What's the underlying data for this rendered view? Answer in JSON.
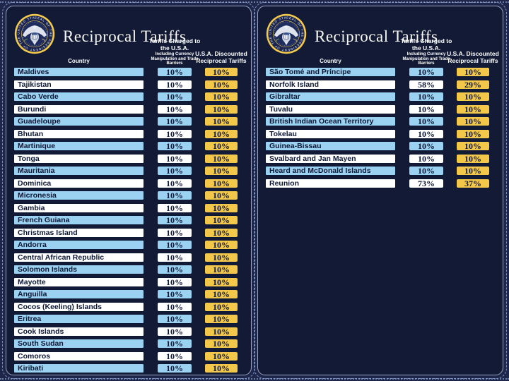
{
  "colors": {
    "backdrop_navy": "#1e2749",
    "panel_navy": "#121a36",
    "row_blue": "#9cd2f1",
    "row_white": "#ffffff",
    "accent_yellow": "#f3c74a",
    "text_navy": "#0d1736",
    "seal_gold": "#f2c94c",
    "title_white": "#f7f5ef"
  },
  "seal": {
    "ring_text": "SEAL OF THE PRESIDENT OF THE UNITED STATES"
  },
  "panels": [
    {
      "title": "Reciprocal Tariffs",
      "columns": {
        "country": "Country",
        "charged_title": "Tariffs Charged to the U.S.A.",
        "charged_sub": "Including Currency Manipulation and Trade Barriers",
        "discounted": "U.S.A. Discounted Reciprocal Tariffs"
      },
      "rows": [
        {
          "country": "Maldives",
          "charged": "10%",
          "discounted": "10%"
        },
        {
          "country": "Tajikistan",
          "charged": "10%",
          "discounted": "10%"
        },
        {
          "country": "Cabo Verde",
          "charged": "10%",
          "discounted": "10%"
        },
        {
          "country": "Burundi",
          "charged": "10%",
          "discounted": "10%"
        },
        {
          "country": "Guadeloupe",
          "charged": "10%",
          "discounted": "10%"
        },
        {
          "country": "Bhutan",
          "charged": "10%",
          "discounted": "10%"
        },
        {
          "country": "Martinique",
          "charged": "10%",
          "discounted": "10%"
        },
        {
          "country": "Tonga",
          "charged": "10%",
          "discounted": "10%"
        },
        {
          "country": "Mauritania",
          "charged": "10%",
          "discounted": "10%"
        },
        {
          "country": "Dominica",
          "charged": "10%",
          "discounted": "10%"
        },
        {
          "country": "Micronesia",
          "charged": "10%",
          "discounted": "10%"
        },
        {
          "country": "Gambia",
          "charged": "10%",
          "discounted": "10%"
        },
        {
          "country": "French Guiana",
          "charged": "10%",
          "discounted": "10%"
        },
        {
          "country": "Christmas Island",
          "charged": "10%",
          "discounted": "10%"
        },
        {
          "country": "Andorra",
          "charged": "10%",
          "discounted": "10%"
        },
        {
          "country": "Central African Republic",
          "charged": "10%",
          "discounted": "10%"
        },
        {
          "country": "Solomon Islands",
          "charged": "10%",
          "discounted": "10%"
        },
        {
          "country": "Mayotte",
          "charged": "10%",
          "discounted": "10%"
        },
        {
          "country": "Anguilla",
          "charged": "10%",
          "discounted": "10%"
        },
        {
          "country": "Cocos (Keeling) Islands",
          "charged": "10%",
          "discounted": "10%"
        },
        {
          "country": "Eritrea",
          "charged": "10%",
          "discounted": "10%"
        },
        {
          "country": "Cook Islands",
          "charged": "10%",
          "discounted": "10%"
        },
        {
          "country": "South Sudan",
          "charged": "10%",
          "discounted": "10%"
        },
        {
          "country": "Comoros",
          "charged": "10%",
          "discounted": "10%"
        },
        {
          "country": "Kiribati",
          "charged": "10%",
          "discounted": "10%"
        }
      ]
    },
    {
      "title": "Reciprocal Tariffs",
      "columns": {
        "country": "Country",
        "charged_title": "Tariffs Charged to the U.S.A.",
        "charged_sub": "Including Currency Manipulation and Trade Barriers",
        "discounted": "U.S.A. Discounted Reciprocal Tariffs"
      },
      "rows": [
        {
          "country": "São Tomé and Príncipe",
          "charged": "10%",
          "discounted": "10%"
        },
        {
          "country": "Norfolk Island",
          "charged": "58%",
          "discounted": "29%"
        },
        {
          "country": "Gibraltar",
          "charged": "10%",
          "discounted": "10%"
        },
        {
          "country": "Tuvalu",
          "charged": "10%",
          "discounted": "10%"
        },
        {
          "country": "British Indian Ocean Territory",
          "charged": "10%",
          "discounted": "10%"
        },
        {
          "country": "Tokelau",
          "charged": "10%",
          "discounted": "10%"
        },
        {
          "country": "Guinea-Bissau",
          "charged": "10%",
          "discounted": "10%"
        },
        {
          "country": "Svalbard and Jan Mayen",
          "charged": "10%",
          "discounted": "10%"
        },
        {
          "country": "Heard and McDonald Islands",
          "charged": "10%",
          "discounted": "10%"
        },
        {
          "country": "Reunion",
          "charged": "73%",
          "discounted": "37%"
        }
      ]
    }
  ],
  "chart_data": [
    {
      "type": "table",
      "title": "Reciprocal Tariffs",
      "columns": [
        "Country",
        "Tariffs Charged to the U.S.A. Including Currency Manipulation and Trade Barriers",
        "U.S.A. Discounted Reciprocal Tariffs"
      ],
      "rows": [
        [
          "Maldives",
          "10%",
          "10%"
        ],
        [
          "Tajikistan",
          "10%",
          "10%"
        ],
        [
          "Cabo Verde",
          "10%",
          "10%"
        ],
        [
          "Burundi",
          "10%",
          "10%"
        ],
        [
          "Guadeloupe",
          "10%",
          "10%"
        ],
        [
          "Bhutan",
          "10%",
          "10%"
        ],
        [
          "Martinique",
          "10%",
          "10%"
        ],
        [
          "Tonga",
          "10%",
          "10%"
        ],
        [
          "Mauritania",
          "10%",
          "10%"
        ],
        [
          "Dominica",
          "10%",
          "10%"
        ],
        [
          "Micronesia",
          "10%",
          "10%"
        ],
        [
          "Gambia",
          "10%",
          "10%"
        ],
        [
          "French Guiana",
          "10%",
          "10%"
        ],
        [
          "Christmas Island",
          "10%",
          "10%"
        ],
        [
          "Andorra",
          "10%",
          "10%"
        ],
        [
          "Central African Republic",
          "10%",
          "10%"
        ],
        [
          "Solomon Islands",
          "10%",
          "10%"
        ],
        [
          "Mayotte",
          "10%",
          "10%"
        ],
        [
          "Anguilla",
          "10%",
          "10%"
        ],
        [
          "Cocos (Keeling) Islands",
          "10%",
          "10%"
        ],
        [
          "Eritrea",
          "10%",
          "10%"
        ],
        [
          "Cook Islands",
          "10%",
          "10%"
        ],
        [
          "South Sudan",
          "10%",
          "10%"
        ],
        [
          "Comoros",
          "10%",
          "10%"
        ],
        [
          "Kiribati",
          "10%",
          "10%"
        ]
      ]
    },
    {
      "type": "table",
      "title": "Reciprocal Tariffs",
      "columns": [
        "Country",
        "Tariffs Charged to the U.S.A. Including Currency Manipulation and Trade Barriers",
        "U.S.A. Discounted Reciprocal Tariffs"
      ],
      "rows": [
        [
          "São Tomé and Príncipe",
          "10%",
          "10%"
        ],
        [
          "Norfolk Island",
          "58%",
          "29%"
        ],
        [
          "Gibraltar",
          "10%",
          "10%"
        ],
        [
          "Tuvalu",
          "10%",
          "10%"
        ],
        [
          "British Indian Ocean Territory",
          "10%",
          "10%"
        ],
        [
          "Tokelau",
          "10%",
          "10%"
        ],
        [
          "Guinea-Bissau",
          "10%",
          "10%"
        ],
        [
          "Svalbard and Jan Mayen",
          "10%",
          "10%"
        ],
        [
          "Heard and McDonald Islands",
          "10%",
          "10%"
        ],
        [
          "Reunion",
          "73%",
          "37%"
        ]
      ]
    }
  ]
}
